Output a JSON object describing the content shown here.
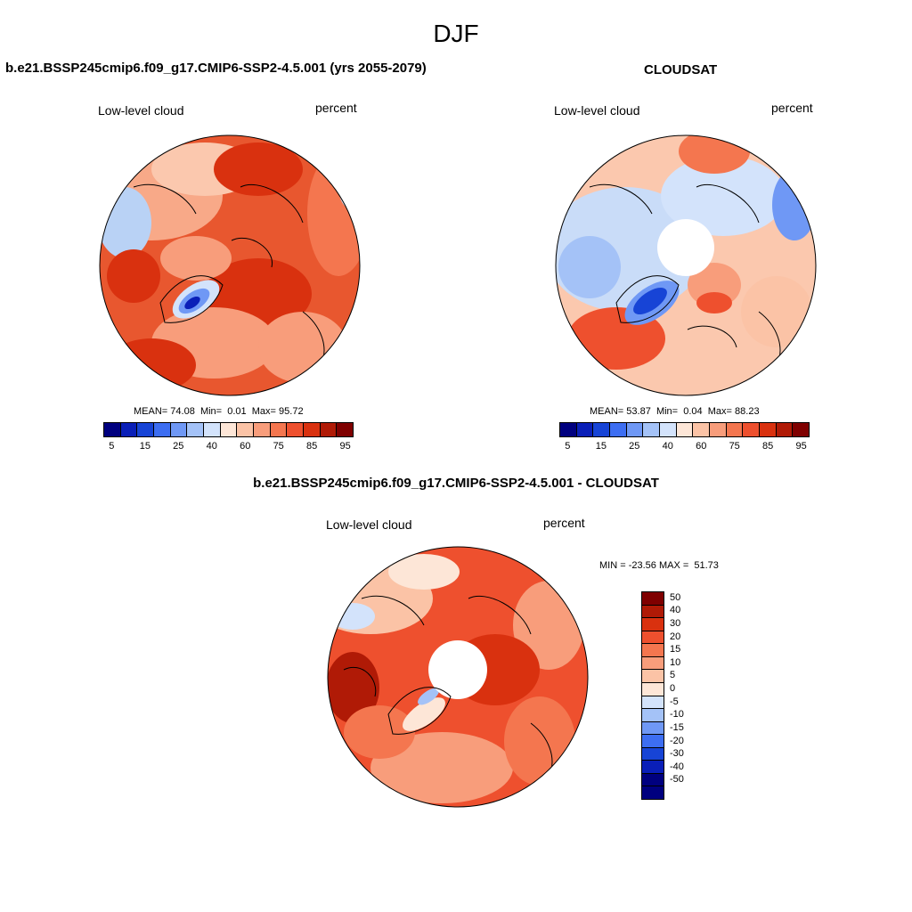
{
  "figure": {
    "title": "DJF"
  },
  "panels": [
    {
      "title": "b.e21.BSSP245cmip6.f09_g17.CMIP6-SSP2-4.5.001 (yrs 2055-2079)",
      "variable": "Low-level cloud",
      "units": "percent",
      "stats": {
        "mean_label": "MEAN=",
        "mean": "74.08",
        "min_label": "Min=",
        "min": "0.01",
        "max_label": "Max=",
        "max": "95.72"
      },
      "colorbar": {
        "ticks": [
          "5",
          "15",
          "25",
          "40",
          "60",
          "75",
          "85",
          "95"
        ],
        "colors": [
          "#00007f",
          "#0a1fb8",
          "#1744d6",
          "#3d6ef2",
          "#6f98f5",
          "#a4c2f7",
          "#d3e3fb",
          "#fde6d7",
          "#fbc3a6",
          "#f89d7b",
          "#f4764f",
          "#ee502e",
          "#d9310f",
          "#b01a06",
          "#7f0000"
        ]
      }
    },
    {
      "title": "CLOUDSAT",
      "variable": "Low-level cloud",
      "units": "percent",
      "stats": {
        "mean_label": "MEAN=",
        "mean": "53.87",
        "min_label": "Min=",
        "min": "0.04",
        "max_label": "Max=",
        "max": "88.23"
      },
      "colorbar": {
        "ticks": [
          "5",
          "15",
          "25",
          "40",
          "60",
          "75",
          "85",
          "95"
        ],
        "colors": [
          "#00007f",
          "#0a1fb8",
          "#1744d6",
          "#3d6ef2",
          "#6f98f5",
          "#a4c2f7",
          "#d3e3fb",
          "#fde6d7",
          "#fbc3a6",
          "#f89d7b",
          "#f4764f",
          "#ee502e",
          "#d9310f",
          "#b01a06",
          "#7f0000"
        ]
      }
    },
    {
      "title": "b.e21.BSSP245cmip6.f09_g17.CMIP6-SSP2-4.5.001 - CLOUDSAT",
      "variable": "Low-level cloud",
      "units": "percent",
      "stats": {
        "text": "MIN = -23.56 MAX =  51.73"
      },
      "colorbar": {
        "ticks": [
          "50",
          "40",
          "30",
          "20",
          "15",
          "10",
          "5",
          "0",
          "-5",
          "-10",
          "-15",
          "-20",
          "-30",
          "-40",
          "-50"
        ],
        "colors": [
          "#7f0000",
          "#b01a06",
          "#d9310f",
          "#ee502e",
          "#f4764f",
          "#f89d7b",
          "#fbc3a6",
          "#fde6d7",
          "#d3e3fb",
          "#a4c2f7",
          "#6f98f5",
          "#3d6ef2",
          "#1744d6",
          "#0a1fb8",
          "#00007f",
          "#00007f"
        ]
      }
    }
  ]
}
